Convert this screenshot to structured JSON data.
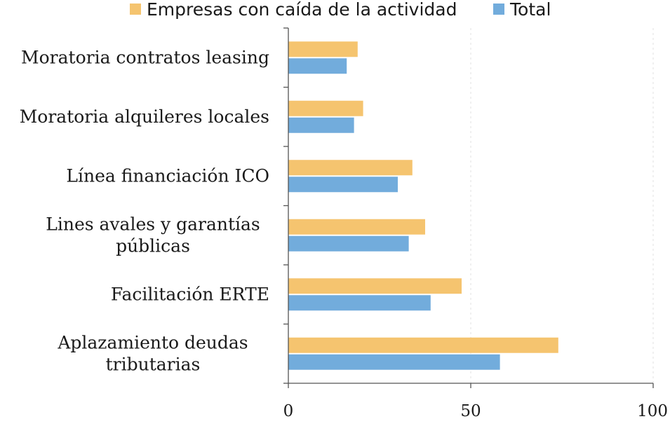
{
  "chart_data": {
    "type": "bar",
    "orientation": "horizontal",
    "categories": [
      "Moratoria contratos leasing",
      "Moratoria alquileres locales",
      "Línea financiación ICO",
      "Lines avales y garantías públicas",
      "Facilitación ERTE",
      "Aplazamiento deudas tributarias"
    ],
    "category_lines": [
      [
        "Moratoria contratos leasing"
      ],
      [
        "Moratoria alquileres locales"
      ],
      [
        "Línea financiación ICO"
      ],
      [
        "Lines avales y garantías",
        "públicas"
      ],
      [
        "Facilitación ERTE"
      ],
      [
        "Aplazamiento deudas",
        "tributarias"
      ]
    ],
    "series": [
      {
        "name": "Empresas con caída de la actividad",
        "color": "#f5c46f",
        "values": [
          19,
          20.5,
          34,
          37.5,
          47.5,
          74
        ]
      },
      {
        "name": "Total",
        "color": "#72acdc",
        "values": [
          16,
          18,
          30,
          33,
          39,
          58
        ]
      }
    ],
    "xlim": [
      0,
      100
    ],
    "xticks": [
      0,
      50,
      100
    ],
    "grid": "vertical-dashed",
    "legend": "top"
  }
}
